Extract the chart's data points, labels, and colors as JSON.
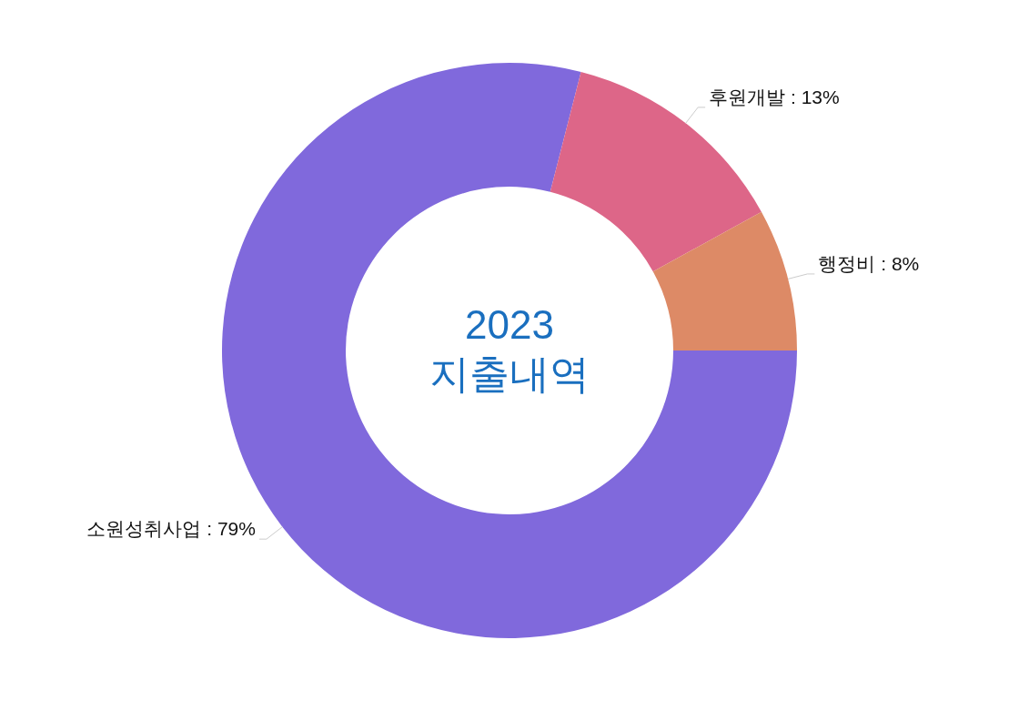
{
  "chart_data": {
    "type": "donut",
    "title": "2023 지출내역",
    "categories": [
      "소원성취사업",
      "후원개발",
      "행정비"
    ],
    "values": [
      79,
      13,
      8
    ],
    "value_labels": [
      "79%",
      "13%",
      "8%"
    ],
    "colors": [
      "#8069dc",
      "#dd6688",
      "#dd8a66"
    ]
  }
}
